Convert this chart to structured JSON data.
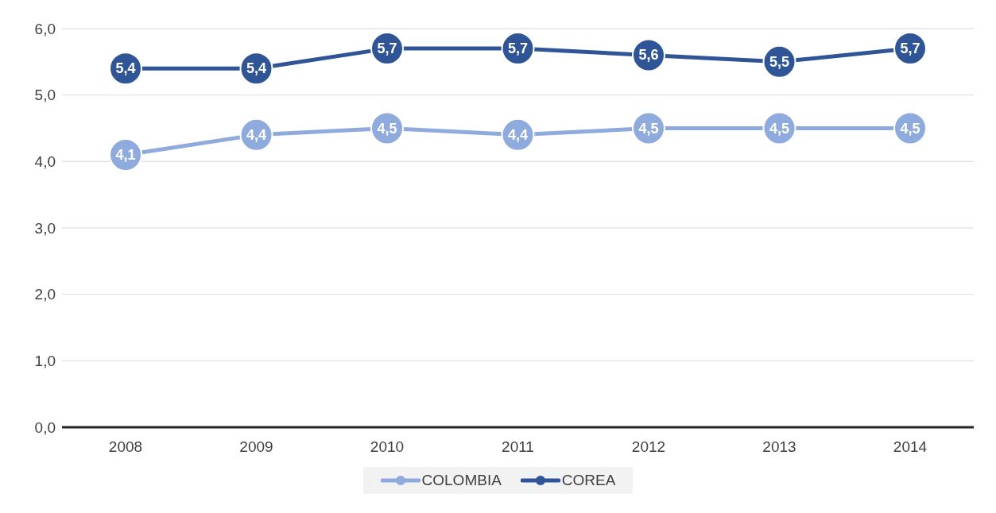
{
  "chart_data": {
    "type": "line",
    "categories": [
      "2008",
      "2009",
      "2010",
      "2011",
      "2012",
      "2013",
      "2014"
    ],
    "series": [
      {
        "name": "COLOMBIA",
        "color": "#8faadc",
        "values": [
          4.1,
          4.4,
          4.5,
          4.4,
          4.5,
          4.5,
          4.5
        ],
        "value_labels": [
          "4,1",
          "4,4",
          "4,5",
          "4,4",
          "4,5",
          "4,5",
          "4,5"
        ]
      },
      {
        "name": "COREA",
        "color": "#2f5597",
        "values": [
          5.4,
          5.4,
          5.7,
          5.7,
          5.6,
          5.5,
          5.7
        ],
        "value_labels": [
          "5,4",
          "5,4",
          "5,7",
          "5,7",
          "5,6",
          "5,5",
          "5,7"
        ]
      }
    ],
    "ylim": [
      0,
      6
    ],
    "yticks": [
      {
        "value": 0,
        "label": "0,0"
      },
      {
        "value": 1,
        "label": "1,0"
      },
      {
        "value": 2,
        "label": "2,0"
      },
      {
        "value": 3,
        "label": "3,0"
      },
      {
        "value": 4,
        "label": "4,0"
      },
      {
        "value": 5,
        "label": "5,0"
      },
      {
        "value": 6,
        "label": "6,0"
      }
    ],
    "grid": "y",
    "legend": "bottom",
    "marker": "circle",
    "line_style": "solid"
  }
}
